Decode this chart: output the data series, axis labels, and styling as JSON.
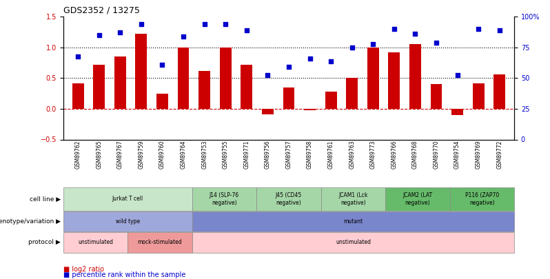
{
  "title": "GDS2352 / 13275",
  "samples": [
    "GSM89762",
    "GSM89765",
    "GSM89767",
    "GSM89759",
    "GSM89760",
    "GSM89764",
    "GSM89753",
    "GSM89755",
    "GSM89771",
    "GSM89756",
    "GSM89757",
    "GSM89758",
    "GSM89761",
    "GSM89763",
    "GSM89773",
    "GSM89766",
    "GSM89768",
    "GSM89770",
    "GSM89754",
    "GSM89769",
    "GSM89772"
  ],
  "log2_ratio": [
    0.42,
    0.72,
    0.85,
    1.22,
    0.25,
    1.0,
    0.62,
    1.0,
    0.72,
    -0.09,
    0.35,
    -0.02,
    0.28,
    0.5,
    1.0,
    0.92,
    1.05,
    0.4,
    -0.1,
    0.42,
    0.56
  ],
  "percentile": [
    0.85,
    1.2,
    1.25,
    1.38,
    0.72,
    1.18,
    1.38,
    1.38,
    1.28,
    0.55,
    0.68,
    0.82,
    0.77,
    1.0,
    1.05,
    1.3,
    1.22,
    1.08,
    0.55,
    1.3,
    1.28
  ],
  "bar_color": "#cc0000",
  "dot_color": "#0000cc",
  "ylim_left": [
    -0.5,
    1.5
  ],
  "ylim_right": [
    0,
    100
  ],
  "yticks_left": [
    -0.5,
    0.0,
    0.5,
    1.0,
    1.5
  ],
  "yticks_right": [
    0,
    25,
    50,
    75,
    100
  ],
  "hlines": [
    0.5,
    1.0
  ],
  "hline_zero": 0.0,
  "cell_line_groups": [
    {
      "label": "Jurkat T cell",
      "start": 0,
      "end": 6,
      "color": "#c8e6c9"
    },
    {
      "label": "J14 (SLP-76\nnegative)",
      "start": 6,
      "end": 9,
      "color": "#a5d6a7"
    },
    {
      "label": "J45 (CD45\nnegative)",
      "start": 9,
      "end": 12,
      "color": "#a5d6a7"
    },
    {
      "label": "JCAM1 (Lck\nnegative)",
      "start": 12,
      "end": 15,
      "color": "#a5d6a7"
    },
    {
      "label": "JCAM2 (LAT\nnegative)",
      "start": 15,
      "end": 18,
      "color": "#66bb6a"
    },
    {
      "label": "P116 (ZAP70\nnegative)",
      "start": 18,
      "end": 21,
      "color": "#66bb6a"
    }
  ],
  "genotype_groups": [
    {
      "label": "wild type",
      "start": 0,
      "end": 6,
      "color": "#9fa8da"
    },
    {
      "label": "mutant",
      "start": 6,
      "end": 21,
      "color": "#7986cb"
    }
  ],
  "protocol_groups": [
    {
      "label": "unstimulated",
      "start": 0,
      "end": 3,
      "color": "#ffcdd2"
    },
    {
      "label": "mock-stimulated",
      "start": 3,
      "end": 6,
      "color": "#ef9a9a"
    },
    {
      "label": "unstimulated",
      "start": 6,
      "end": 21,
      "color": "#ffcdd2"
    }
  ],
  "legend_items": [
    {
      "label": "log2 ratio",
      "color": "#cc0000"
    },
    {
      "label": "percentile rank within the sample",
      "color": "#0000cc"
    }
  ]
}
